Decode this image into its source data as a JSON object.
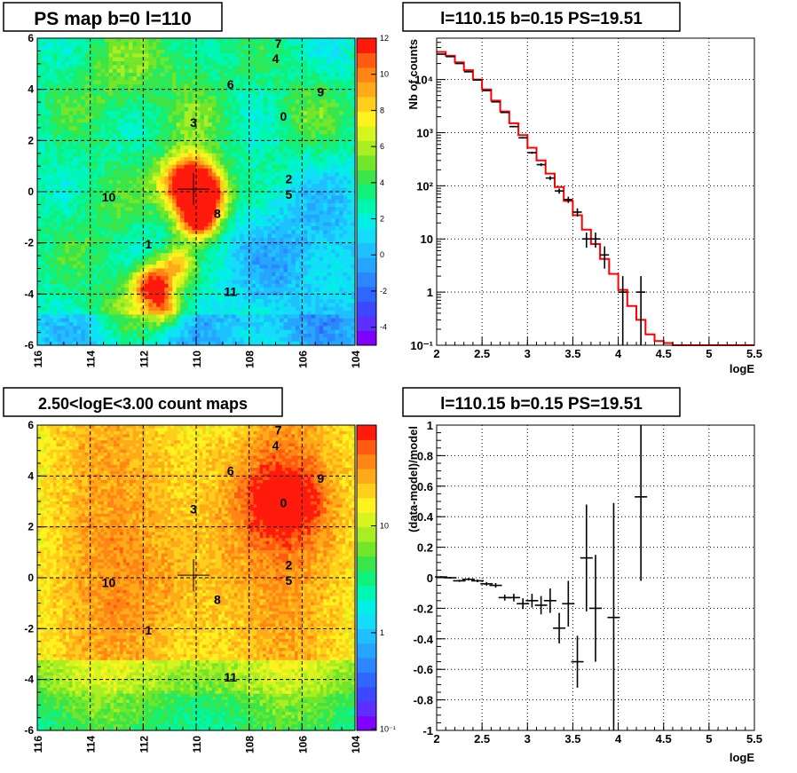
{
  "panels": {
    "ps_map": {
      "title": "PS map b=0 l=110",
      "xticks": [
        "116",
        "114",
        "112",
        "110",
        "108",
        "106",
        "104"
      ],
      "yticks": [
        "6",
        "4",
        "2",
        "0",
        "-2",
        "-4",
        "-6"
      ],
      "colorbar_ticks": [
        "12",
        "10",
        "8",
        "6",
        "4",
        "2",
        "0",
        "-2",
        "-4"
      ],
      "sources": [
        {
          "label": "0",
          "l": 106.7,
          "b": 2.95
        },
        {
          "label": "1",
          "l": 111.8,
          "b": -2.05
        },
        {
          "label": "2",
          "l": 106.5,
          "b": 0.5
        },
        {
          "label": "3",
          "l": 110.1,
          "b": 2.7
        },
        {
          "label": "4",
          "l": 107.0,
          "b": 5.2
        },
        {
          "label": "5",
          "l": 106.5,
          "b": -0.1
        },
        {
          "label": "6",
          "l": 108.7,
          "b": 4.2
        },
        {
          "label": "7",
          "l": 106.9,
          "b": 5.8
        },
        {
          "label": "8",
          "l": 109.2,
          "b": -0.85
        },
        {
          "label": "9",
          "l": 105.3,
          "b": 3.9
        },
        {
          "label": "10",
          "l": 113.3,
          "b": -0.2
        },
        {
          "label": "11",
          "l": 108.7,
          "b": -3.9
        }
      ]
    },
    "count_map": {
      "title": "2.50<logE<3.00 count maps",
      "xticks": [
        "116",
        "114",
        "112",
        "110",
        "108",
        "106",
        "104"
      ],
      "yticks": [
        "6",
        "4",
        "2",
        "0",
        "-2",
        "-4",
        "-6"
      ],
      "colorbar_ticks": [
        "10",
        "1",
        "10⁻¹"
      ]
    },
    "spectrum": {
      "title": "l=110.15 b=0.15 PS=19.51",
      "xlabel": "logE",
      "ylabel": "Nb of counts",
      "xticks": [
        "2",
        "2.5",
        "3",
        "3.5",
        "4",
        "4.5",
        "5",
        "5.5"
      ],
      "ytick_labels": [
        "10⁻¹",
        "1",
        "10",
        "10²",
        "10³",
        "10⁴"
      ]
    },
    "residual": {
      "title": "l=110.15 b=0.15 PS=19.51",
      "xlabel": "logE",
      "ylabel": "(data-model)/model",
      "xticks": [
        "2",
        "2.5",
        "3",
        "3.5",
        "4",
        "4.5",
        "5",
        "5.5"
      ],
      "yticks": [
        "1",
        "0.8",
        "0.6",
        "0.4",
        "0.2",
        "0",
        "-0.2",
        "-0.4",
        "-0.6",
        "-0.8",
        "-1"
      ]
    }
  },
  "chart_data": [
    {
      "type": "heatmap",
      "title": "PS map b=0 l=110",
      "xlim": [
        116,
        104
      ],
      "ylim": [
        -6,
        6
      ],
      "zlim": [
        -5,
        12
      ],
      "cross": {
        "l": 110.1,
        "b": 0.1
      }
    },
    {
      "type": "heatmap",
      "title": "2.50<logE<3.00 count maps",
      "xlim": [
        116,
        104
      ],
      "ylim": [
        -6,
        6
      ],
      "zscale": "log",
      "cross": {
        "l": 110.1,
        "b": 0.1
      }
    },
    {
      "type": "line",
      "title": "l=110.15 b=0.15 PS=19.51",
      "xlabel": "logE",
      "ylabel": "Nb of counts",
      "xlim": [
        2,
        5.5
      ],
      "ylim": [
        0.1,
        60000
      ],
      "yscale": "log",
      "model_color": "#ff0000",
      "model_edges": [
        2.0,
        2.1,
        2.2,
        2.3,
        2.4,
        2.5,
        2.6,
        2.7,
        2.8,
        2.9,
        3.0,
        3.1,
        3.2,
        3.3,
        3.4,
        3.5,
        3.6,
        3.7,
        3.8,
        3.9,
        4.0,
        4.1,
        4.2,
        4.3,
        4.4,
        4.5,
        4.6,
        4.7,
        5.5
      ],
      "model_values": [
        33000,
        28000,
        21000,
        15000,
        10000,
        6500,
        4000,
        2500,
        1500,
        900,
        520,
        300,
        170,
        95,
        52,
        28,
        15,
        8,
        4.2,
        2.2,
        1.1,
        0.55,
        0.3,
        0.16,
        0.12,
        0.11,
        0.1,
        0.1
      ],
      "data_points": [
        {
          "x": 2.05,
          "y": 30000
        },
        {
          "x": 2.15,
          "y": 27000
        },
        {
          "x": 2.25,
          "y": 20000
        },
        {
          "x": 2.35,
          "y": 14000
        },
        {
          "x": 2.45,
          "y": 9800
        },
        {
          "x": 2.55,
          "y": 6200
        },
        {
          "x": 2.65,
          "y": 3800
        },
        {
          "x": 2.75,
          "y": 2400
        },
        {
          "x": 2.85,
          "y": 1300
        },
        {
          "x": 2.95,
          "y": 800
        },
        {
          "x": 3.05,
          "y": 420
        },
        {
          "x": 3.15,
          "y": 250
        },
        {
          "x": 3.25,
          "y": 140
        },
        {
          "x": 3.35,
          "y": 80
        },
        {
          "x": 3.45,
          "y": 55
        },
        {
          "x": 3.55,
          "y": 32
        },
        {
          "x": 3.65,
          "y": 10
        },
        {
          "x": 3.75,
          "y": 10
        },
        {
          "x": 3.85,
          "y": 5
        },
        {
          "x": 4.05,
          "y": 1
        },
        {
          "x": 4.25,
          "y": 1
        }
      ]
    },
    {
      "type": "scatter",
      "title": "l=110.15 b=0.15 PS=19.51",
      "xlabel": "logE",
      "ylabel": "(data-model)/model",
      "xlim": [
        2,
        5.5
      ],
      "ylim": [
        -1,
        1
      ],
      "points": [
        {
          "x": 2.05,
          "y": 0.005,
          "err": 0.006
        },
        {
          "x": 2.15,
          "y": 0.0,
          "err": 0.006
        },
        {
          "x": 2.25,
          "y": -0.02,
          "err": 0.007
        },
        {
          "x": 2.35,
          "y": -0.01,
          "err": 0.008
        },
        {
          "x": 2.45,
          "y": -0.02,
          "err": 0.009
        },
        {
          "x": 2.55,
          "y": -0.04,
          "err": 0.012
        },
        {
          "x": 2.65,
          "y": -0.05,
          "err": 0.015
        },
        {
          "x": 2.75,
          "y": -0.13,
          "err": 0.02
        },
        {
          "x": 2.85,
          "y": -0.13,
          "err": 0.025
        },
        {
          "x": 2.95,
          "y": -0.17,
          "err": 0.035
        },
        {
          "x": 3.05,
          "y": -0.15,
          "err": 0.045
        },
        {
          "x": 3.15,
          "y": -0.18,
          "err": 0.06
        },
        {
          "x": 3.25,
          "y": -0.15,
          "err": 0.08
        },
        {
          "x": 3.35,
          "y": -0.33,
          "err": 0.1
        },
        {
          "x": 3.45,
          "y": -0.17,
          "err": 0.15
        },
        {
          "x": 3.55,
          "y": -0.55,
          "err": 0.17
        },
        {
          "x": 3.65,
          "y": 0.13,
          "err": 0.35
        },
        {
          "x": 3.75,
          "y": -0.2,
          "err": 0.35
        },
        {
          "x": 3.95,
          "y": -0.26,
          "err": 0.75
        },
        {
          "x": 4.25,
          "y": 0.53,
          "err": 0.55
        }
      ]
    }
  ]
}
